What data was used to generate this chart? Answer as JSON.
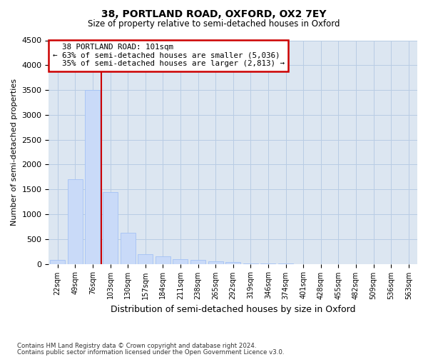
{
  "title1": "38, PORTLAND ROAD, OXFORD, OX2 7EY",
  "title2": "Size of property relative to semi-detached houses in Oxford",
  "xlabel": "Distribution of semi-detached houses by size in Oxford",
  "ylabel": "Number of semi-detached properties",
  "bin_labels": [
    "22sqm",
    "49sqm",
    "76sqm",
    "103sqm",
    "130sqm",
    "157sqm",
    "184sqm",
    "211sqm",
    "238sqm",
    "265sqm",
    "292sqm",
    "319sqm",
    "346sqm",
    "374sqm",
    "401sqm",
    "428sqm",
    "455sqm",
    "482sqm",
    "509sqm",
    "536sqm",
    "563sqm"
  ],
  "bar_values": [
    75,
    1700,
    3500,
    1450,
    620,
    200,
    155,
    100,
    75,
    55,
    30,
    10,
    5,
    2,
    0,
    0,
    0,
    0,
    0,
    0,
    0
  ],
  "bar_color": "#c9daf8",
  "bar_edge_color": "#a4c2f4",
  "property_line_color": "#cc0000",
  "property_line_x": 2.5,
  "property_label": "38 PORTLAND ROAD: 101sqm",
  "smaller_pct": "63%",
  "smaller_count": "5,036",
  "larger_pct": "35%",
  "larger_count": "2,813",
  "annotation_box_edge_color": "#cc0000",
  "ylim": [
    0,
    4500
  ],
  "yticks": [
    0,
    500,
    1000,
    1500,
    2000,
    2500,
    3000,
    3500,
    4000,
    4500
  ],
  "grid_color": "#b8cce4",
  "bg_color": "#dce6f1",
  "footnote1": "Contains HM Land Registry data © Crown copyright and database right 2024.",
  "footnote2": "Contains public sector information licensed under the Open Government Licence v3.0."
}
